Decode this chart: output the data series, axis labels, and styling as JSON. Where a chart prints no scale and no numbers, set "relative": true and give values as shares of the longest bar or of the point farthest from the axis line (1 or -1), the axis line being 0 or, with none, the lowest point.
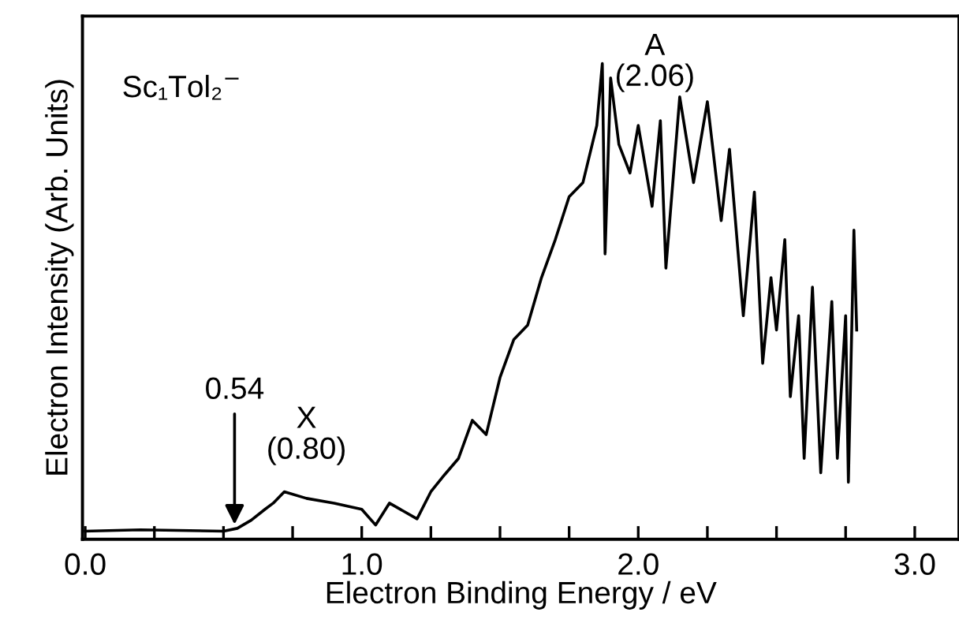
{
  "chart_data": {
    "type": "line",
    "relative": true,
    "xlabel": "Electron Binding Energy / eV",
    "ylabel": "Electron Intensity (Arb. Units)",
    "xlim": [
      -0.01,
      3.16
    ],
    "xticks": [
      {
        "value": 0.0,
        "label": "0.0"
      },
      {
        "value": 0.25,
        "label": null
      },
      {
        "value": 0.5,
        "label": null
      },
      {
        "value": 0.75,
        "label": null
      },
      {
        "value": 1.0,
        "label": "1.0"
      },
      {
        "value": 1.25,
        "label": null
      },
      {
        "value": 1.5,
        "label": null
      },
      {
        "value": 1.75,
        "label": null
      },
      {
        "value": 2.0,
        "label": "2.0"
      },
      {
        "value": 2.25,
        "label": null
      },
      {
        "value": 2.5,
        "label": null
      },
      {
        "value": 2.75,
        "label": null
      },
      {
        "value": 3.0,
        "label": "3.0"
      }
    ],
    "tick_labels": "x",
    "series": [
      {
        "color": "#000000",
        "x": [
          0.0,
          0.2,
          0.5,
          0.55,
          0.6,
          0.65,
          0.68,
          0.72,
          0.8,
          0.9,
          1.0,
          1.05,
          1.1,
          1.2,
          1.25,
          1.3,
          1.35,
          1.4,
          1.45,
          1.5,
          1.55,
          1.6,
          1.65,
          1.7,
          1.75,
          1.8,
          1.85,
          1.87,
          1.88,
          1.9,
          1.93,
          1.97,
          2.0,
          2.05,
          2.08,
          2.1,
          2.15,
          2.2,
          2.25,
          2.3,
          2.33,
          2.38,
          2.42,
          2.45,
          2.48,
          2.5,
          2.53,
          2.55,
          2.58,
          2.6,
          2.63,
          2.66,
          2.7,
          2.72,
          2.75,
          2.76,
          2.78,
          2.79
        ],
        "values": [
          0.017,
          0.02,
          0.017,
          0.023,
          0.04,
          0.063,
          0.076,
          0.1,
          0.086,
          0.076,
          0.063,
          0.03,
          0.076,
          0.043,
          0.1,
          0.136,
          0.17,
          0.25,
          0.22,
          0.34,
          0.42,
          0.45,
          0.55,
          0.63,
          0.72,
          0.75,
          0.87,
          1.0,
          0.6,
          0.97,
          0.83,
          0.77,
          0.87,
          0.7,
          0.88,
          0.57,
          0.93,
          0.75,
          0.92,
          0.67,
          0.82,
          0.47,
          0.73,
          0.37,
          0.55,
          0.44,
          0.63,
          0.3,
          0.47,
          0.17,
          0.53,
          0.14,
          0.5,
          0.17,
          0.47,
          0.12,
          0.65,
          0.44
        ]
      }
    ],
    "annotations": [
      "Sc₁Tol₂$^{−}$",
      {
        "text": "A\n(2.06)",
        "x": 2.06,
        "y": 0.87
      },
      {
        "text": "X\n(0.80)",
        "x": 0.8,
        "y": 0.086
      },
      {
        "text": "0.54",
        "x": 0.54,
        "y": 0.022
      }
    ]
  }
}
